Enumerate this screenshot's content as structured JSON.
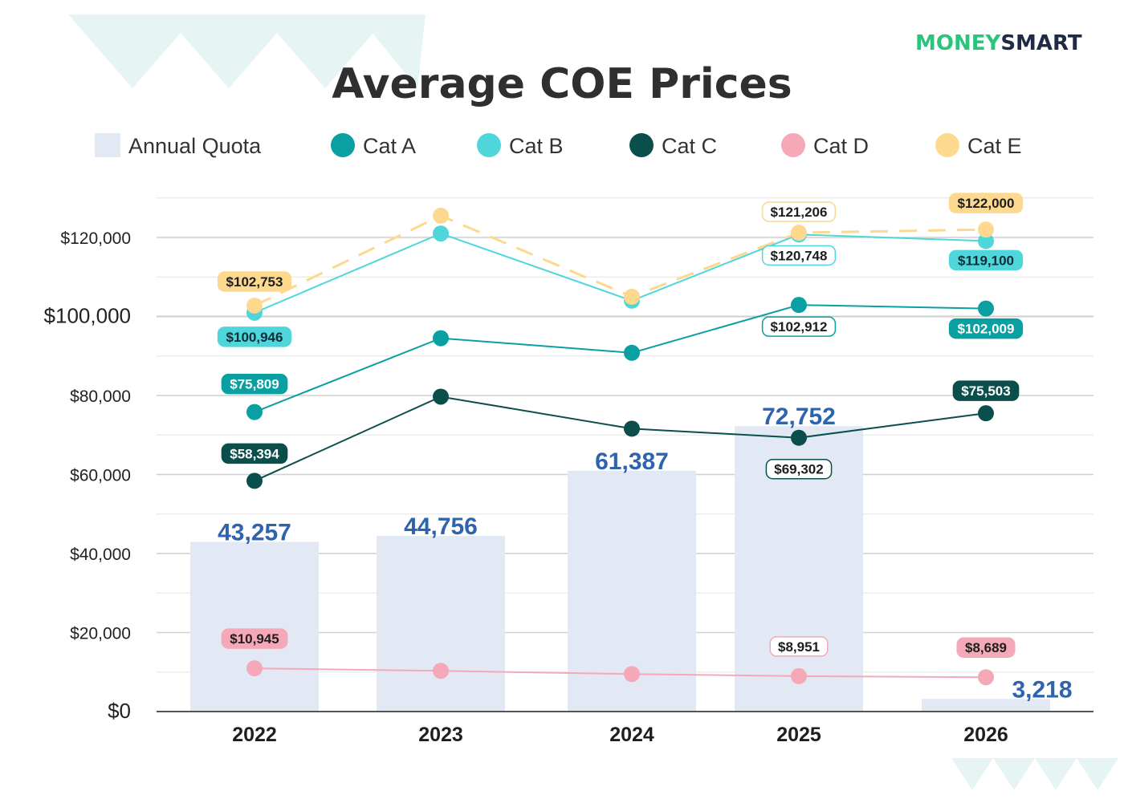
{
  "header": {
    "title": "Average COE Prices",
    "logo_part1": "MONEY",
    "logo_part2": "SMART"
  },
  "colors": {
    "quota_bar": "#e2e9f4",
    "quota_text": "#2e64ad",
    "Cat A": "#0a9fa0",
    "Cat B": "#4fd6da",
    "Cat C": "#0b4f4c",
    "Cat D": "#f4a8b8",
    "Cat E": "#fcd98e",
    "logo_green": "#2bc47d",
    "logo_navy": "#1f2a44",
    "decor": "#e6f4f4"
  },
  "chart_data": {
    "type": "bar+line",
    "title": "Average COE Prices",
    "categories": [
      "2022",
      "2023",
      "2024",
      "2025",
      "2026"
    ],
    "y_ticks": [
      "$0",
      "$20,000",
      "$40,000",
      "$60,000",
      "$80,000",
      "$100,000",
      "$120,000"
    ],
    "ylim": [
      0,
      130000
    ],
    "grid": true,
    "legend_position": "top",
    "legend": [
      "Annual Quota",
      "Cat A",
      "Cat B",
      "Cat C",
      "Cat D",
      "Cat E"
    ],
    "bars": {
      "name": "Annual Quota",
      "values": [
        43257,
        44756,
        61387,
        72752,
        3218
      ],
      "labels": [
        "43,257",
        "44,756",
        "61,387",
        "72,752",
        "3,218"
      ]
    },
    "series": [
      {
        "name": "Cat A",
        "values": [
          75809,
          94500,
          90800,
          102912,
          102009
        ],
        "labels": [
          "$75,809",
          "",
          "",
          "$102,912",
          "$102,009"
        ]
      },
      {
        "name": "Cat B",
        "values": [
          100946,
          121000,
          104000,
          120748,
          119100
        ],
        "labels": [
          "$100,946",
          "",
          "",
          "$120,748",
          "$119,100"
        ]
      },
      {
        "name": "Cat C",
        "values": [
          58394,
          79700,
          71600,
          69302,
          75503
        ],
        "labels": [
          "$58,394",
          "",
          "",
          "$69,302",
          "$75,503"
        ]
      },
      {
        "name": "Cat D",
        "values": [
          10945,
          10300,
          9500,
          8951,
          8689
        ],
        "labels": [
          "$10,945",
          "",
          "",
          "$8,951",
          "$8,689"
        ]
      },
      {
        "name": "Cat E",
        "values": [
          102753,
          125500,
          105000,
          121206,
          122000
        ],
        "labels": [
          "$102,753",
          "",
          "",
          "$121,206",
          "$122,000"
        ]
      }
    ]
  }
}
